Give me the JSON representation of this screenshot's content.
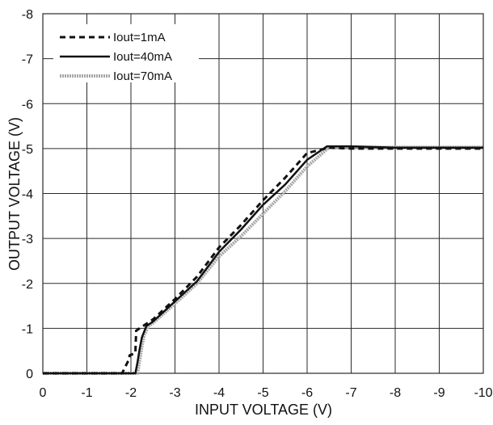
{
  "chart_data": {
    "type": "line",
    "xlabel": "INPUT VOLTAGE (V)",
    "ylabel": "OUTPUT VOLTAGE (V)",
    "xlim": [
      0,
      -10
    ],
    "ylim": [
      0,
      -8
    ],
    "x_ticks": [
      0,
      -1,
      -2,
      -3,
      -4,
      -5,
      -6,
      -7,
      -8,
      -9,
      -10
    ],
    "x_tick_labels": [
      "0",
      "-1",
      "-2",
      "-3",
      "-4",
      "-5",
      "-6",
      "-7",
      "-8",
      "-9",
      "-10"
    ],
    "y_ticks": [
      0,
      -1,
      -2,
      -3,
      -4,
      -5,
      -6,
      -7,
      -8
    ],
    "y_tick_labels": [
      "0",
      "-1",
      "-2",
      "-3",
      "-4",
      "-5",
      "-6",
      "-7",
      "-8"
    ],
    "grid": true,
    "legend_position": "top-left",
    "series": [
      {
        "name": "Iout=1mA",
        "style": "dashed",
        "color": "#111111",
        "x": [
          0,
          -0.9,
          -1.8,
          -1.95,
          -1.97,
          -2.1,
          -2.12,
          -2.5,
          -3,
          -3.5,
          -4,
          -4.5,
          -5,
          -5.5,
          -6,
          -6.5,
          -7,
          -8,
          -9,
          -10
        ],
        "y": [
          0,
          0,
          0,
          -0.3,
          -0.4,
          -0.45,
          -0.95,
          -1.2,
          -1.65,
          -2.15,
          -2.8,
          -3.3,
          -3.85,
          -4.35,
          -4.9,
          -5.02,
          -5.0,
          -5.0,
          -5.0,
          -5.0
        ]
      },
      {
        "name": "Iout=40mA",
        "style": "solid",
        "color": "#111111",
        "x": [
          0,
          -0.9,
          -2.1,
          -2.15,
          -2.2,
          -2.25,
          -2.35,
          -2.5,
          -3,
          -3.5,
          -4,
          -4.5,
          -5,
          -5.5,
          -6,
          -6.45,
          -7,
          -8,
          -9,
          -10
        ],
        "y": [
          0,
          0,
          0,
          -0.25,
          -0.55,
          -0.8,
          -1.05,
          -1.15,
          -1.6,
          -2.05,
          -2.7,
          -3.2,
          -3.75,
          -4.2,
          -4.75,
          -5.05,
          -5.05,
          -5.02,
          -5.02,
          -5.02
        ]
      },
      {
        "name": "Iout=70mA",
        "style": "dotted",
        "color": "#a6a6a6",
        "x": [
          0,
          -0.9,
          -2.15,
          -2.2,
          -2.25,
          -2.3,
          -2.4,
          -2.5,
          -3,
          -3.5,
          -4,
          -4.5,
          -5,
          -5.5,
          -6,
          -6.5,
          -7,
          -8,
          -9,
          -10
        ],
        "y": [
          0,
          0,
          0,
          -0.3,
          -0.6,
          -0.85,
          -1.05,
          -1.12,
          -1.55,
          -2.0,
          -2.6,
          -3.05,
          -3.55,
          -4.05,
          -4.6,
          -5.03,
          -5.03,
          -5.03,
          -5.03,
          -5.03
        ]
      }
    ]
  }
}
